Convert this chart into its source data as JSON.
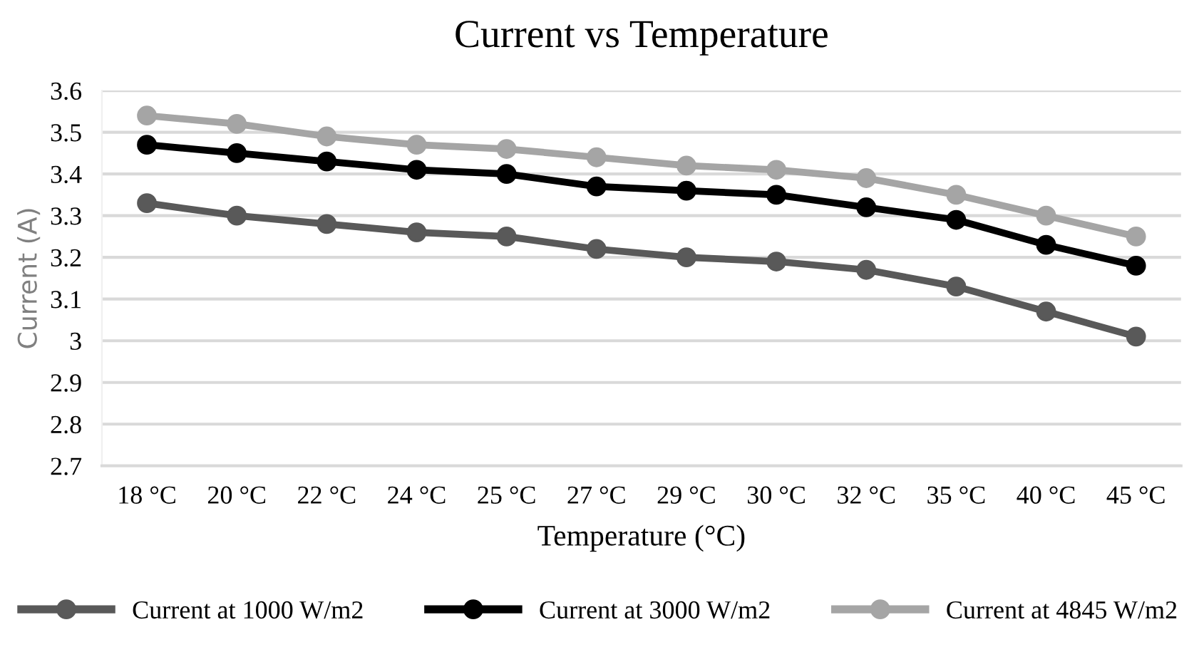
{
  "chart_data": {
    "type": "line",
    "title": "Current vs Temperature",
    "xlabel": "Temperature (°C)",
    "ylabel": "Current (A)",
    "categories": [
      "18 °C",
      "20 °C",
      "22 °C",
      "24 °C",
      "25 °C",
      "27 °C",
      "29 °C",
      "30 °C",
      "32 °C",
      "35 °C",
      "40 °C",
      "45 °C"
    ],
    "series": [
      {
        "name": "Current at 1000 W/m2",
        "color": "#595959",
        "values": [
          3.33,
          3.3,
          3.28,
          3.26,
          3.25,
          3.22,
          3.2,
          3.19,
          3.17,
          3.13,
          3.07,
          3.01
        ]
      },
      {
        "name": "Current at 3000 W/m2",
        "color": "#000000",
        "values": [
          3.47,
          3.45,
          3.43,
          3.41,
          3.4,
          3.37,
          3.36,
          3.35,
          3.32,
          3.29,
          3.23,
          3.18
        ]
      },
      {
        "name": "Current at 4845 W/m2",
        "color": "#a5a5a5",
        "values": [
          3.54,
          3.52,
          3.49,
          3.47,
          3.46,
          3.44,
          3.42,
          3.41,
          3.39,
          3.35,
          3.3,
          3.25
        ]
      }
    ],
    "ylim": [
      2.7,
      3.6
    ],
    "yticks": [
      2.7,
      2.8,
      2.9,
      3,
      3.1,
      3.2,
      3.3,
      3.4,
      3.5,
      3.6
    ],
    "grid": "y",
    "legend": "bottom",
    "marker": "circle",
    "line_style": "solid"
  }
}
